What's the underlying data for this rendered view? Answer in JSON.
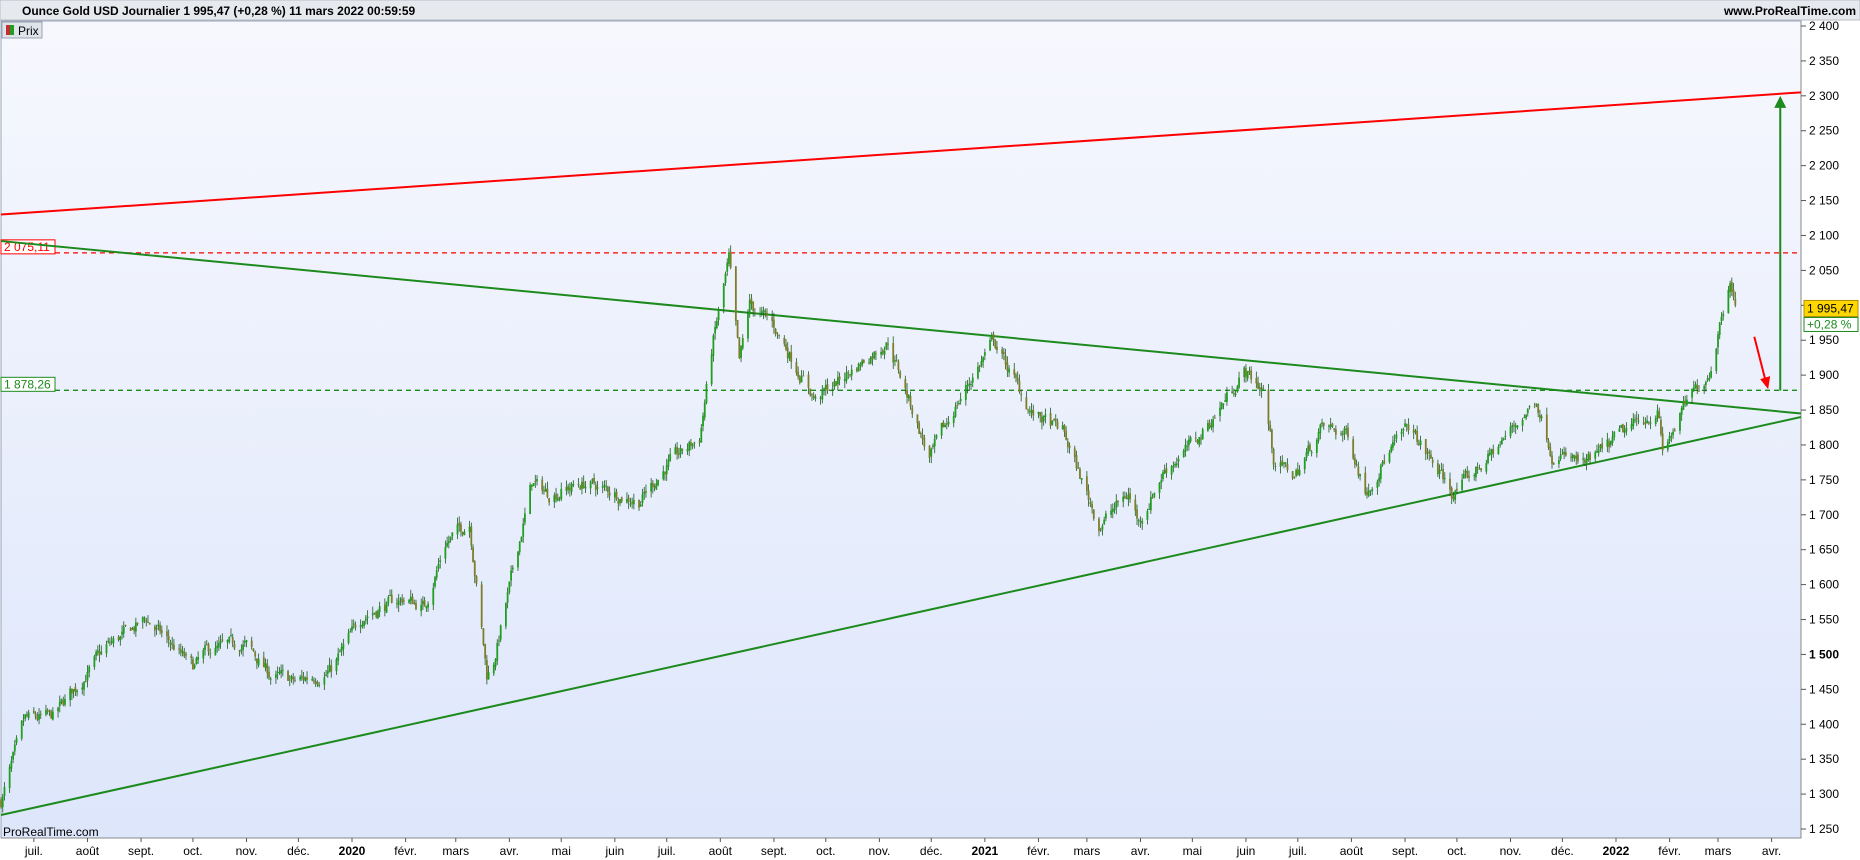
{
  "header": {
    "title": "Ounce Gold USD Journalier 1 995,47 (+0,28 %) 11 mars 2022 00:59:59",
    "site": "www.ProRealTime.com"
  },
  "legend": {
    "label": "Prix"
  },
  "watermark": "ProRealTime.com",
  "colors": {
    "plot_top": "#f7f8fe",
    "plot_bottom": "#dde6fb",
    "up": "#1f9e1f",
    "down": "#7d7d2a",
    "resistance": "#ff0000",
    "support": "#1c8a1c",
    "price_badge": "#ffd700"
  },
  "chart_data": {
    "type": "candlestick",
    "ylim": [
      1240,
      2410
    ],
    "yticks": [
      1250,
      1300,
      1350,
      1400,
      1450,
      1500,
      1550,
      1600,
      1650,
      1700,
      1750,
      1800,
      1850,
      1900,
      1950,
      2000,
      2050,
      2100,
      2150,
      2200,
      2250,
      2300,
      2350,
      2400
    ],
    "ytick_labels": [
      "1 250",
      "1 300",
      "1 350",
      "1 400",
      "1 450",
      "1 500",
      "1 550",
      "1 600",
      "1 650",
      "1 700",
      "1 750",
      "1 800",
      "1 850",
      "1 900",
      "1 950",
      "2 000",
      "2 050",
      "2 100",
      "2 150",
      "2 200",
      "2 250",
      "2 300",
      "2 350",
      "2 400"
    ],
    "x_start": "2019-06-12",
    "x_end": "2022-04-18",
    "xticks": [
      {
        "date": "2019-07-01",
        "label": "juil."
      },
      {
        "date": "2019-08-01",
        "label": "août"
      },
      {
        "date": "2019-09-01",
        "label": "sept."
      },
      {
        "date": "2019-10-01",
        "label": "oct."
      },
      {
        "date": "2019-11-01",
        "label": "nov."
      },
      {
        "date": "2019-12-01",
        "label": "déc."
      },
      {
        "date": "2020-01-01",
        "label": "2020",
        "bold": true
      },
      {
        "date": "2020-02-01",
        "label": "févr."
      },
      {
        "date": "2020-03-01",
        "label": "mars"
      },
      {
        "date": "2020-04-01",
        "label": "avr."
      },
      {
        "date": "2020-05-01",
        "label": "mai"
      },
      {
        "date": "2020-06-01",
        "label": "juin"
      },
      {
        "date": "2020-07-01",
        "label": "juil."
      },
      {
        "date": "2020-08-01",
        "label": "août"
      },
      {
        "date": "2020-09-01",
        "label": "sept."
      },
      {
        "date": "2020-10-01",
        "label": "oct."
      },
      {
        "date": "2020-11-01",
        "label": "nov."
      },
      {
        "date": "2020-12-01",
        "label": "déc."
      },
      {
        "date": "2021-01-01",
        "label": "2021",
        "bold": true
      },
      {
        "date": "2021-02-01",
        "label": "févr."
      },
      {
        "date": "2021-03-01",
        "label": "mars"
      },
      {
        "date": "2021-04-01",
        "label": "avr."
      },
      {
        "date": "2021-05-01",
        "label": "mai"
      },
      {
        "date": "2021-06-01",
        "label": "juin"
      },
      {
        "date": "2021-07-01",
        "label": "juil."
      },
      {
        "date": "2021-08-01",
        "label": "août"
      },
      {
        "date": "2021-09-01",
        "label": "sept."
      },
      {
        "date": "2021-10-01",
        "label": "oct."
      },
      {
        "date": "2021-11-01",
        "label": "nov."
      },
      {
        "date": "2021-12-01",
        "label": "déc."
      },
      {
        "date": "2022-01-01",
        "label": "2022",
        "bold": true
      },
      {
        "date": "2022-02-01",
        "label": "févr."
      },
      {
        "date": "2022-03-01",
        "label": "mars"
      },
      {
        "date": "2022-04-01",
        "label": "avr."
      }
    ],
    "price_path": [
      [
        "2019-06-12",
        1290
      ],
      [
        "2019-06-26",
        1405
      ],
      [
        "2019-07-12",
        1410
      ],
      [
        "2019-08-12",
        1510
      ],
      [
        "2019-09-04",
        1550
      ],
      [
        "2019-09-20",
        1510
      ],
      [
        "2019-10-01",
        1480
      ],
      [
        "2019-10-10",
        1505
      ],
      [
        "2019-10-31",
        1515
      ],
      [
        "2019-11-15",
        1470
      ],
      [
        "2019-11-29",
        1460
      ],
      [
        "2019-12-20",
        1478
      ],
      [
        "2020-01-08",
        1558
      ],
      [
        "2020-01-31",
        1580
      ],
      [
        "2020-02-12",
        1568
      ],
      [
        "2020-02-24",
        1660
      ],
      [
        "2020-03-09",
        1690
      ],
      [
        "2020-03-19",
        1470
      ],
      [
        "2020-03-23",
        1490
      ],
      [
        "2020-04-14",
        1745
      ],
      [
        "2020-04-24",
        1730
      ],
      [
        "2020-05-15",
        1745
      ],
      [
        "2020-06-15",
        1720
      ],
      [
        "2020-07-01",
        1770
      ],
      [
        "2020-07-20",
        1810
      ],
      [
        "2020-07-28",
        1950
      ],
      [
        "2020-08-06",
        2065
      ],
      [
        "2020-08-12",
        1915
      ],
      [
        "2020-08-18",
        2000
      ],
      [
        "2020-09-01",
        1970
      ],
      [
        "2020-09-25",
        1865
      ],
      [
        "2020-10-15",
        1905
      ],
      [
        "2020-11-06",
        1950
      ],
      [
        "2020-11-30",
        1780
      ],
      [
        "2020-12-16",
        1860
      ],
      [
        "2021-01-06",
        1950
      ],
      [
        "2021-01-28",
        1845
      ],
      [
        "2021-02-15",
        1820
      ],
      [
        "2021-03-08",
        1685
      ],
      [
        "2021-03-25",
        1730
      ],
      [
        "2021-03-31",
        1690
      ],
      [
        "2021-04-15",
        1765
      ],
      [
        "2021-05-05",
        1810
      ],
      [
        "2021-05-31",
        1905
      ],
      [
        "2021-06-11",
        1880
      ],
      [
        "2021-06-17",
        1780
      ],
      [
        "2021-06-29",
        1755
      ],
      [
        "2021-07-15",
        1825
      ],
      [
        "2021-07-30",
        1815
      ],
      [
        "2021-08-09",
        1735
      ],
      [
        "2021-08-20",
        1780
      ],
      [
        "2021-09-03",
        1825
      ],
      [
        "2021-09-29",
        1730
      ],
      [
        "2021-10-22",
        1790
      ],
      [
        "2021-11-16",
        1865
      ],
      [
        "2021-11-25",
        1790
      ],
      [
        "2021-12-15",
        1770
      ],
      [
        "2022-01-04",
        1815
      ],
      [
        "2022-01-25",
        1850
      ],
      [
        "2022-01-28",
        1790
      ],
      [
        "2022-02-11",
        1860
      ],
      [
        "2022-02-24",
        1905
      ],
      [
        "2022-03-08",
        2045
      ],
      [
        "2022-03-11",
        1995
      ]
    ],
    "lines": [
      {
        "name": "resistance",
        "color": "red",
        "from": [
          "2019-06-12",
          2130
        ],
        "to": [
          "2022-04-18",
          2305
        ]
      },
      {
        "name": "upper-trend",
        "color": "green",
        "from": [
          "2019-06-12",
          2092
        ],
        "to": [
          "2022-04-18",
          1845
        ]
      },
      {
        "name": "lower-trend",
        "color": "green",
        "from": [
          "2019-06-12",
          1270
        ],
        "to": [
          "2022-04-18",
          1840
        ]
      }
    ],
    "levels": [
      {
        "label": "2 075,11",
        "value": 2075.11,
        "color": "red"
      },
      {
        "label": "1 878,26",
        "value": 1878.26,
        "color": "green"
      }
    ],
    "last_price": {
      "label": "1 995,47",
      "value": 1995.47,
      "change_label": "+0,28 %"
    },
    "target_arrow": {
      "date": "2022-04-06",
      "from": 1878,
      "to": 2300
    },
    "down_arrow": {
      "from": [
        "2022-03-22",
        1955
      ],
      "to": [
        "2022-03-30",
        1880
      ]
    }
  }
}
